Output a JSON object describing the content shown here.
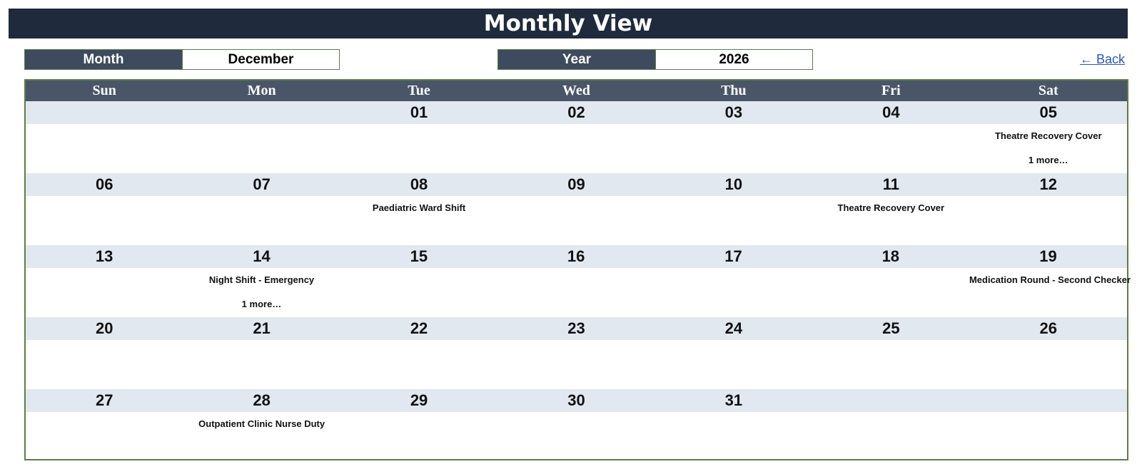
{
  "header": {
    "title": "Monthly View"
  },
  "selectors": {
    "month_label": "Month",
    "month_value": "December",
    "year_label": "Year",
    "year_value": "2026"
  },
  "nav": {
    "back_label": "← Back"
  },
  "calendar": {
    "weekdays": [
      "Sun",
      "Mon",
      "Tue",
      "Wed",
      "Thu",
      "Fri",
      "Sat"
    ],
    "weeks": [
      [
        {
          "day": "",
          "events": [],
          "more": ""
        },
        {
          "day": "",
          "events": [],
          "more": ""
        },
        {
          "day": "01",
          "events": [],
          "more": ""
        },
        {
          "day": "02",
          "events": [],
          "more": ""
        },
        {
          "day": "03",
          "events": [],
          "more": ""
        },
        {
          "day": "04",
          "events": [],
          "more": ""
        },
        {
          "day": "05",
          "events": [
            "Theatre Recovery Cover"
          ],
          "more": "1 more…"
        }
      ],
      [
        {
          "day": "06",
          "events": [],
          "more": ""
        },
        {
          "day": "07",
          "events": [],
          "more": ""
        },
        {
          "day": "08",
          "events": [
            "Paediatric Ward Shift"
          ],
          "more": ""
        },
        {
          "day": "09",
          "events": [],
          "more": ""
        },
        {
          "day": "10",
          "events": [],
          "more": ""
        },
        {
          "day": "11",
          "events": [
            "Theatre Recovery Cover"
          ],
          "more": ""
        },
        {
          "day": "12",
          "events": [],
          "more": ""
        }
      ],
      [
        {
          "day": "13",
          "events": [],
          "more": ""
        },
        {
          "day": "14",
          "events": [
            "Night Shift - Emergency"
          ],
          "more": "1 more…"
        },
        {
          "day": "15",
          "events": [],
          "more": ""
        },
        {
          "day": "16",
          "events": [],
          "more": ""
        },
        {
          "day": "17",
          "events": [],
          "more": ""
        },
        {
          "day": "18",
          "events": [],
          "more": ""
        },
        {
          "day": "19",
          "events": [
            "Medication Round - Second Checker"
          ],
          "more": ""
        }
      ],
      [
        {
          "day": "20",
          "events": [],
          "more": ""
        },
        {
          "day": "21",
          "events": [],
          "more": ""
        },
        {
          "day": "22",
          "events": [],
          "more": ""
        },
        {
          "day": "23",
          "events": [],
          "more": ""
        },
        {
          "day": "24",
          "events": [],
          "more": ""
        },
        {
          "day": "25",
          "events": [],
          "more": ""
        },
        {
          "day": "26",
          "events": [],
          "more": ""
        }
      ],
      [
        {
          "day": "27",
          "events": [],
          "more": ""
        },
        {
          "day": "28",
          "events": [
            "Outpatient Clinic Nurse Duty"
          ],
          "more": ""
        },
        {
          "day": "29",
          "events": [],
          "more": ""
        },
        {
          "day": "30",
          "events": [],
          "more": ""
        },
        {
          "day": "31",
          "events": [],
          "more": ""
        },
        {
          "day": "",
          "events": [],
          "more": ""
        },
        {
          "day": "",
          "events": [],
          "more": ""
        }
      ]
    ]
  },
  "colors": {
    "title_bg": "#1f2a3c",
    "header_bg": "#3e4b5e",
    "weekday_bg": "#4a5568",
    "day_band_bg": "#e2e8f0",
    "border": "#5b7e49",
    "link": "#2a56b5"
  }
}
